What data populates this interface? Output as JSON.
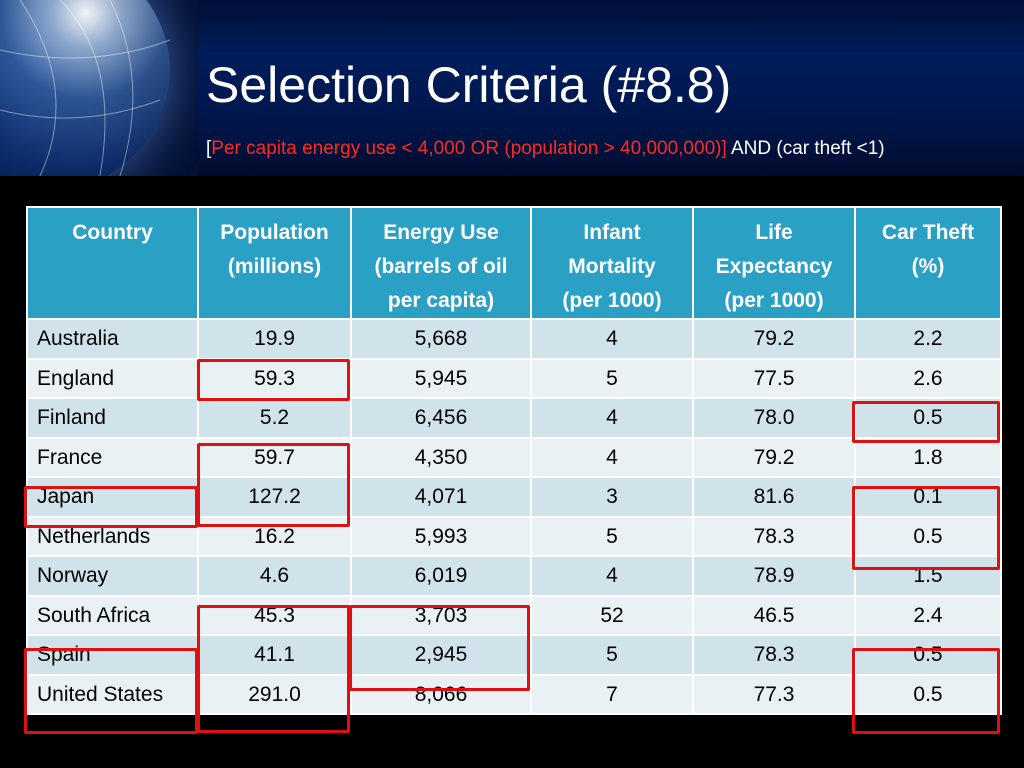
{
  "slide": {
    "title": "Selection Criteria (#8.8)",
    "subtitle": {
      "bracket_open": "[",
      "criteria_red": "Per capita energy use < 4,000 OR (population > 40,000,000)]",
      "criteria_rest": " AND (car theft <1)"
    }
  },
  "table": {
    "columns": [
      {
        "line1": "Country",
        "line2": "",
        "line3": ""
      },
      {
        "line1": "Population",
        "line2": "(millions)",
        "line3": ""
      },
      {
        "line1": "Energy Use",
        "line2": "(barrels of oil",
        "line3": "per capita)"
      },
      {
        "line1": "Infant",
        "line2": "Mortality",
        "line3": "(per 1000)"
      },
      {
        "line1": "Life",
        "line2": "Expectancy",
        "line3": "(per 1000)"
      },
      {
        "line1": "Car Theft",
        "line2": "(%)",
        "line3": ""
      }
    ],
    "rows": [
      {
        "country": "Australia",
        "population": "19.9",
        "energy": "5,668",
        "infant": "4",
        "life": "79.2",
        "theft": "2.2"
      },
      {
        "country": "England",
        "population": "59.3",
        "energy": "5,945",
        "infant": "5",
        "life": "77.5",
        "theft": "2.6"
      },
      {
        "country": "Finland",
        "population": "5.2",
        "energy": "6,456",
        "infant": "4",
        "life": "78.0",
        "theft": "0.5"
      },
      {
        "country": "France",
        "population": "59.7",
        "energy": "4,350",
        "infant": "4",
        "life": "79.2",
        "theft": "1.8"
      },
      {
        "country": "Japan",
        "population": "127.2",
        "energy": "4,071",
        "infant": "3",
        "life": "81.6",
        "theft": "0.1"
      },
      {
        "country": "Netherlands",
        "population": "16.2",
        "energy": "5,993",
        "infant": "5",
        "life": "78.3",
        "theft": "0.5"
      },
      {
        "country": "Norway",
        "population": "4.6",
        "energy": "6,019",
        "infant": "4",
        "life": "78.9",
        "theft": "1.5"
      },
      {
        "country": "South Africa",
        "population": "45.3",
        "energy": "3,703",
        "infant": "52",
        "life": "46.5",
        "theft": "2.4"
      },
      {
        "country": "Spain",
        "population": "41.1",
        "energy": "2,945",
        "infant": "5",
        "life": "78.3",
        "theft": "0.5"
      },
      {
        "country": "United States",
        "population": "291.0",
        "energy": "8,066",
        "infant": "7",
        "life": "77.3",
        "theft": "0.5"
      }
    ]
  },
  "highlights": {
    "color": "#e01010"
  }
}
